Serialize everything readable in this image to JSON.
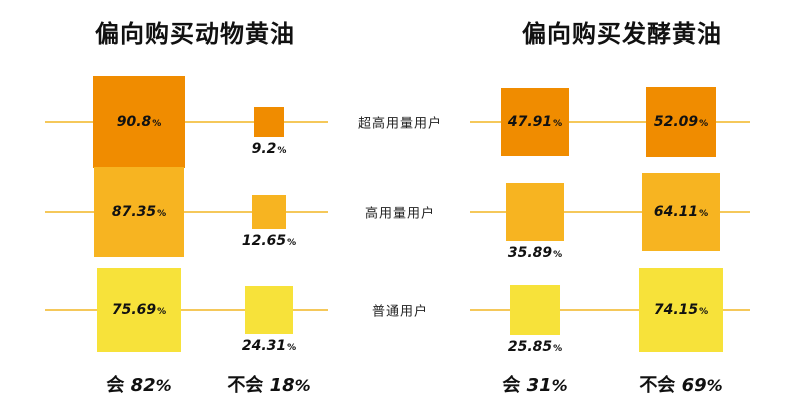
{
  "chart_data": [
    {
      "type": "table",
      "title": "偏向购买动物黄油",
      "rows": [
        "超高用量用户",
        "高用量用户",
        "普通用户"
      ],
      "columns": [
        "会",
        "不会"
      ],
      "series": [
        {
          "name": "会",
          "values": [
            90.8,
            87.35,
            75.69
          ],
          "labels": [
            "90.8",
            "87.35",
            "75.69"
          ]
        },
        {
          "name": "不会",
          "values": [
            9.2,
            12.65,
            24.31
          ],
          "labels": [
            "9.2",
            "12.65",
            "24.31"
          ]
        }
      ],
      "totals": [
        {
          "label": "会",
          "value": "82"
        },
        {
          "label": "不会",
          "value": "18"
        }
      ]
    },
    {
      "type": "table",
      "title": "偏向购买发酵黄油",
      "rows": [
        "超高用量用户",
        "高用量用户",
        "普通用户"
      ],
      "columns": [
        "会",
        "不会"
      ],
      "series": [
        {
          "name": "会",
          "values": [
            47.91,
            35.89,
            25.85
          ],
          "labels": [
            "47.91",
            "35.89",
            "25.85"
          ]
        },
        {
          "name": "不会",
          "values": [
            52.09,
            64.11,
            74.15
          ],
          "labels": [
            "52.09",
            "64.11",
            "74.15"
          ]
        }
      ],
      "totals": [
        {
          "label": "会",
          "value": "31"
        },
        {
          "label": "不会",
          "value": "69"
        }
      ]
    }
  ],
  "percent_sign": "%",
  "row_colors": [
    "#f08c00",
    "#f7b421",
    "#f7e23a"
  ],
  "line_color": "#f5c85a"
}
